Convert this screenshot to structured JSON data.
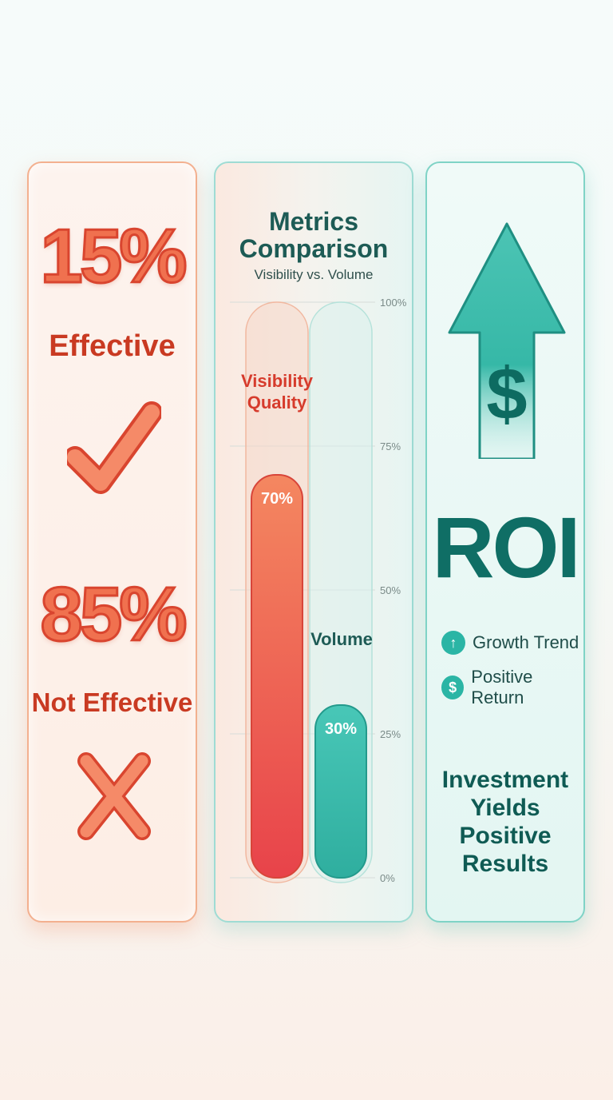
{
  "left_panel": {
    "effective_pct": "15%",
    "effective_label": "Effective",
    "not_effective_pct": "85%",
    "not_effective_label": "Not Effective",
    "check_icon": "check-icon",
    "cross_icon": "cross-icon"
  },
  "chart_data": {
    "type": "bar",
    "title": "Metrics Comparison",
    "subtitle": "Visibility vs. Volume",
    "categories": [
      "Visibility Quality",
      "Volume"
    ],
    "values": [
      70,
      30
    ],
    "value_labels": [
      "70%",
      "30%"
    ],
    "ylim": [
      0,
      100
    ],
    "yticks": [
      0,
      25,
      50,
      75,
      100
    ],
    "ytick_labels": [
      "0%",
      "25%",
      "50%",
      "75%",
      "100%"
    ],
    "grid": true,
    "colors": [
      "#ee5a48",
      "#3cbcae"
    ]
  },
  "right_panel": {
    "arrow_icon": "dollar-up-arrow-icon",
    "roi_label": "ROI",
    "legend": [
      {
        "icon": "arrow-up-icon",
        "glyph": "↑",
        "label": "Growth Trend"
      },
      {
        "icon": "dollar-icon",
        "glyph": "$",
        "label": "Positive Return"
      }
    ],
    "closing": "Investment Yields Positive Results"
  },
  "colors": {
    "coral": "#f0714f",
    "coral_dark": "#c93a22",
    "teal": "#2bb5a5",
    "teal_dark": "#0f6e65"
  }
}
